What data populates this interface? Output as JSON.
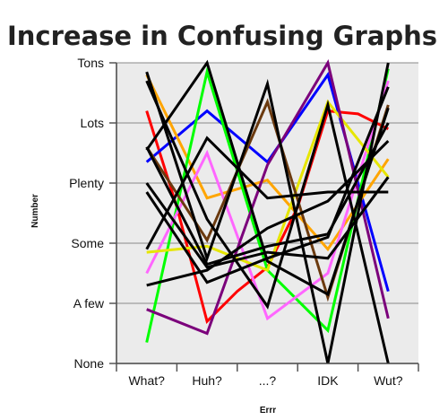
{
  "chart_data": {
    "type": "line",
    "title": "Increase in Confusing Graphs",
    "xlabel": "Errr",
    "ylabel": "Number",
    "categories": [
      "What?",
      "Huh?",
      "...?",
      "IDK",
      "Wut?"
    ],
    "y_tick_labels": [
      "None",
      "A few",
      "Some",
      "Plenty",
      "Lots",
      "Tons"
    ],
    "ylim": [
      0,
      5
    ],
    "grid": true,
    "background": "#ebebeb",
    "series": [
      {
        "color": "#ff0000",
        "points": [
          [
            0,
            4.2
          ],
          [
            0.5,
            2.6
          ],
          [
            1,
            0.7
          ],
          [
            1.5,
            1.2
          ],
          [
            2,
            1.6
          ],
          [
            2.5,
            2.6
          ],
          [
            3,
            4.2
          ],
          [
            3.5,
            4.15
          ],
          [
            4,
            3.9
          ]
        ]
      },
      {
        "color": "#0000ff",
        "points": [
          [
            0,
            3.35
          ],
          [
            1,
            4.2
          ],
          [
            2,
            3.35
          ],
          [
            3,
            4.8
          ],
          [
            4,
            1.2
          ]
        ]
      },
      {
        "color": "#ffa500",
        "points": [
          [
            0,
            4.8
          ],
          [
            1,
            2.75
          ],
          [
            2,
            3.05
          ],
          [
            3,
            1.9
          ],
          [
            4,
            3.4
          ]
        ]
      },
      {
        "color": "#00ff00",
        "points": [
          [
            0,
            0.35
          ],
          [
            1,
            4.85
          ],
          [
            2,
            1.55
          ],
          [
            3,
            0.55
          ],
          [
            4,
            4.9
          ]
        ]
      },
      {
        "color": "#ff66ff",
        "points": [
          [
            0,
            1.5
          ],
          [
            1,
            3.5
          ],
          [
            2,
            0.75
          ],
          [
            3,
            1.5
          ],
          [
            4,
            4.7
          ]
        ]
      },
      {
        "color": "#e6e600",
        "points": [
          [
            0,
            1.85
          ],
          [
            1,
            1.95
          ],
          [
            2,
            1.55
          ],
          [
            3,
            4.35
          ],
          [
            4,
            3.1
          ]
        ]
      },
      {
        "color": "#6b3a0f",
        "points": [
          [
            0,
            3.6
          ],
          [
            1,
            2.05
          ],
          [
            2,
            4.35
          ],
          [
            3,
            1.1
          ],
          [
            4,
            4.3
          ]
        ]
      },
      {
        "color": "#7b007b",
        "points": [
          [
            0,
            0.9
          ],
          [
            1,
            0.5
          ],
          [
            2,
            3.3
          ],
          [
            3,
            5.0
          ],
          [
            4,
            0.75
          ]
        ]
      },
      {
        "color": "#000000",
        "points": [
          [
            0,
            4.85
          ],
          [
            1,
            1.75
          ],
          [
            2,
            4.65
          ],
          [
            3,
            0.0
          ],
          [
            4,
            5.0
          ]
        ]
      },
      {
        "color": "#000000",
        "points": [
          [
            0,
            3.0
          ],
          [
            1,
            1.6
          ],
          [
            2,
            1.85
          ],
          [
            3,
            1.75
          ],
          [
            4,
            3.1
          ]
        ]
      },
      {
        "color": "#000000",
        "points": [
          [
            0,
            1.3
          ],
          [
            1,
            1.55
          ],
          [
            2,
            2.25
          ],
          [
            3,
            2.7
          ],
          [
            4,
            3.7
          ]
        ]
      },
      {
        "color": "#000000",
        "points": [
          [
            0,
            1.9
          ],
          [
            1,
            3.75
          ],
          [
            2,
            2.75
          ],
          [
            3,
            2.85
          ],
          [
            4,
            2.85
          ]
        ]
      },
      {
        "color": "#000000",
        "points": [
          [
            0,
            3.6
          ],
          [
            1,
            1.65
          ],
          [
            2,
            1.95
          ],
          [
            3,
            2.15
          ],
          [
            4,
            4.0
          ]
        ]
      },
      {
        "color": "#000000",
        "points": [
          [
            0,
            3.55
          ],
          [
            1,
            5.0
          ],
          [
            2,
            1.7
          ],
          [
            3,
            1.15
          ],
          [
            4,
            4.25
          ]
        ]
      },
      {
        "color": "#000000",
        "points": [
          [
            0,
            4.7
          ],
          [
            1,
            2.4
          ],
          [
            2,
            0.95
          ],
          [
            3,
            4.3
          ],
          [
            4,
            0.0
          ]
        ]
      },
      {
        "color": "#000000",
        "points": [
          [
            0,
            2.85
          ],
          [
            1,
            1.35
          ],
          [
            2,
            1.75
          ],
          [
            3,
            2.1
          ],
          [
            4,
            4.6
          ]
        ]
      }
    ]
  }
}
